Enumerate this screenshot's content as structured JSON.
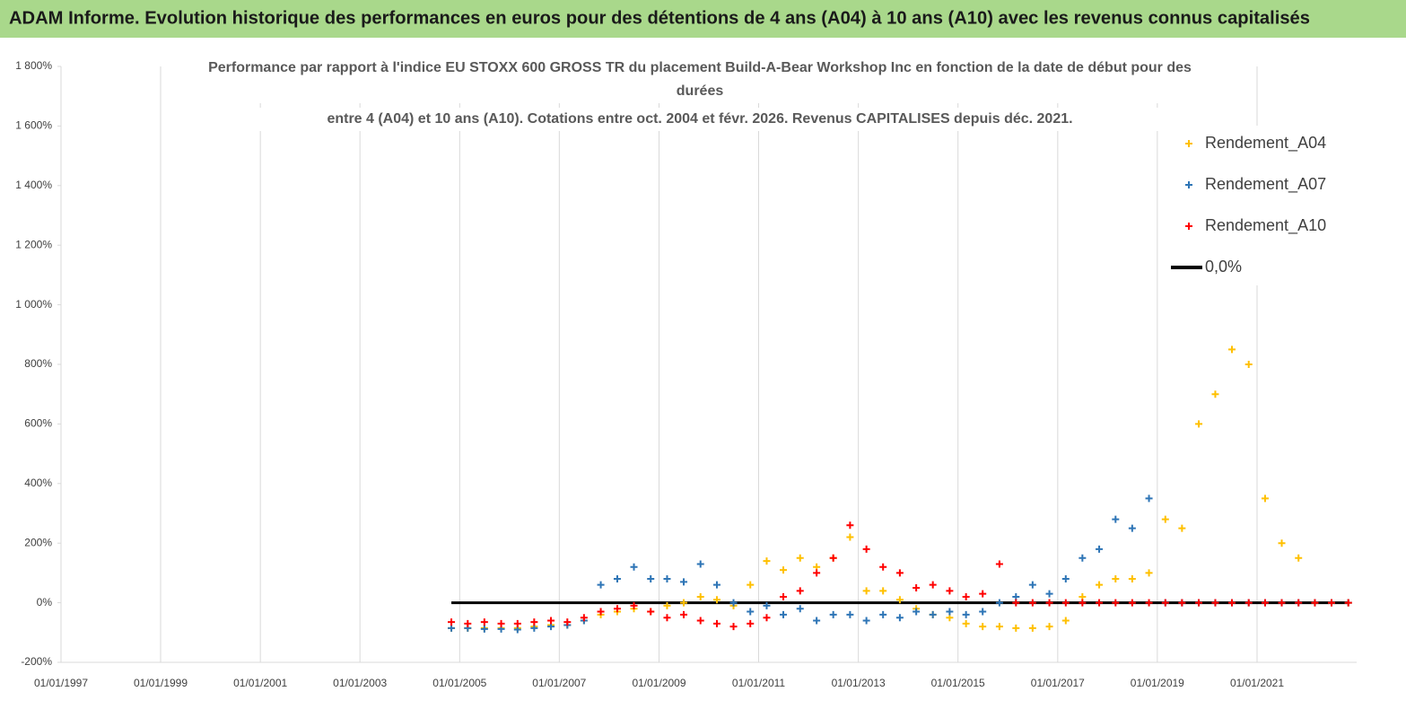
{
  "header": "ADAM Informe. Evolution historique des performances en euros pour des détentions de 4 ans (A04) à 10 ans (A10) avec les revenus connus capitalisés",
  "chart_data": {
    "type": "scatter",
    "title": [
      "Performance par rapport à l'indice EU STOXX 600 GROSS TR  du placement Build-A-Bear Workshop Inc en fonction de la date de début pour des",
      "durées",
      "entre 4 (A04) et 10 ans (A10). Cotations entre oct. 2004 et févr. 2026. Revenus CAPITALISES depuis déc. 2021."
    ],
    "x": [
      "2004-11-01",
      "2005-03-01",
      "2005-07-01",
      "2005-11-01",
      "2006-03-01",
      "2006-07-01",
      "2006-11-01",
      "2007-03-01",
      "2007-07-01",
      "2007-11-01",
      "2008-03-01",
      "2008-07-01",
      "2008-11-01",
      "2009-03-01",
      "2009-07-01",
      "2009-11-01",
      "2010-03-01",
      "2010-07-01",
      "2010-11-01",
      "2011-03-01",
      "2011-07-01",
      "2011-11-01",
      "2012-03-01",
      "2012-07-01",
      "2012-11-01",
      "2013-03-01",
      "2013-07-01",
      "2013-11-01",
      "2014-03-01",
      "2014-07-01",
      "2014-11-01",
      "2015-03-01",
      "2015-07-01",
      "2015-11-01",
      "2016-03-01",
      "2016-07-01",
      "2016-11-01",
      "2017-03-01",
      "2017-07-01",
      "2017-11-01",
      "2018-03-01",
      "2018-07-01",
      "2018-11-01",
      "2019-03-01",
      "2019-07-01",
      "2019-11-01",
      "2020-03-01",
      "2020-07-01",
      "2020-11-01",
      "2021-03-01",
      "2021-07-01",
      "2021-11-01",
      "2022-03-01",
      "2022-07-01",
      "2022-11-01"
    ],
    "series": [
      {
        "name": "Rendement_A04",
        "color": "#ffc000",
        "marker": "plus",
        "values": [
          -85,
          -85,
          -85,
          -85,
          -85,
          -80,
          -75,
          -75,
          -60,
          -40,
          -30,
          -20,
          -30,
          -10,
          0,
          20,
          10,
          -10,
          60,
          140,
          110,
          150,
          120,
          150,
          220,
          40,
          40,
          10,
          -20,
          -40,
          -50,
          -70,
          -80,
          -80,
          -85,
          -85,
          -80,
          -60,
          20,
          60,
          80,
          80,
          100,
          280,
          250,
          600,
          700,
          850,
          800,
          350,
          200,
          150,
          0,
          0,
          0
        ]
      },
      {
        "name": "Rendement_A07",
        "color": "#2e75b6",
        "marker": "plus",
        "values": [
          -85,
          -85,
          -88,
          -88,
          -90,
          -85,
          -80,
          -75,
          -60,
          60,
          80,
          120,
          80,
          80,
          70,
          130,
          60,
          0,
          -30,
          -10,
          -40,
          -20,
          -60,
          -40,
          -40,
          -60,
          -40,
          -50,
          -30,
          -40,
          -30,
          -40,
          -30,
          0,
          20,
          60,
          30,
          80,
          150,
          180,
          280,
          250,
          350,
          0,
          0,
          0,
          0,
          0,
          0,
          0,
          0,
          0,
          0,
          0,
          0
        ]
      },
      {
        "name": "Rendement_A10",
        "color": "#ff0000",
        "marker": "plus",
        "values": [
          -65,
          -70,
          -65,
          -70,
          -70,
          -65,
          -60,
          -65,
          -50,
          -30,
          -20,
          -10,
          -30,
          -50,
          -40,
          -60,
          -70,
          -80,
          -70,
          -50,
          20,
          40,
          100,
          150,
          260,
          180,
          120,
          100,
          50,
          60,
          40,
          20,
          30,
          130,
          0,
          0,
          0,
          0,
          0,
          0,
          0,
          0,
          0,
          0,
          0,
          0,
          0,
          0,
          0,
          0,
          0,
          0,
          0,
          0,
          0
        ]
      },
      {
        "name": "0,0%",
        "color": "#000000",
        "marker": "line",
        "values": [
          0,
          0,
          0,
          0,
          0,
          0,
          0,
          0,
          0,
          0,
          0,
          0,
          0,
          0,
          0,
          0,
          0,
          0,
          0,
          0,
          0,
          0,
          0,
          0,
          0,
          0,
          0,
          0,
          0,
          0,
          0,
          0,
          0,
          0,
          0,
          0,
          0,
          0,
          0,
          0,
          0,
          0,
          0,
          0,
          0,
          0,
          0,
          0,
          0,
          0,
          0,
          0,
          0,
          0,
          0
        ]
      }
    ],
    "xlim": [
      "1997-01-01",
      "2023-01-01"
    ],
    "xticks": [
      {
        "value": "1997-01-01",
        "label": "01/01/1997"
      },
      {
        "value": "1999-01-01",
        "label": "01/01/1999"
      },
      {
        "value": "2001-01-01",
        "label": "01/01/2001"
      },
      {
        "value": "2003-01-01",
        "label": "01/01/2003"
      },
      {
        "value": "2005-01-01",
        "label": "01/01/2005"
      },
      {
        "value": "2007-01-01",
        "label": "01/01/2007"
      },
      {
        "value": "2009-01-01",
        "label": "01/01/2009"
      },
      {
        "value": "2011-01-01",
        "label": "01/01/2011"
      },
      {
        "value": "2013-01-01",
        "label": "01/01/2013"
      },
      {
        "value": "2015-01-01",
        "label": "01/01/2015"
      },
      {
        "value": "2017-01-01",
        "label": "01/01/2017"
      },
      {
        "value": "2019-01-01",
        "label": "01/01/2019"
      },
      {
        "value": "2021-01-01",
        "label": "01/01/2021"
      }
    ],
    "ylim": [
      -200,
      1800
    ],
    "yticks": [
      {
        "value": -200,
        "label": "-200%"
      },
      {
        "value": 0,
        "label": "0%"
      },
      {
        "value": 200,
        "label": "200%"
      },
      {
        "value": 400,
        "label": "400%"
      },
      {
        "value": 600,
        "label": "600%"
      },
      {
        "value": 800,
        "label": "800%"
      },
      {
        "value": 1000,
        "label": "1 000%"
      },
      {
        "value": 1200,
        "label": "1 200%"
      },
      {
        "value": 1400,
        "label": "1 400%"
      },
      {
        "value": 1600,
        "label": "1 600%"
      },
      {
        "value": 1800,
        "label": "1 800%"
      }
    ],
    "grid": "x"
  }
}
